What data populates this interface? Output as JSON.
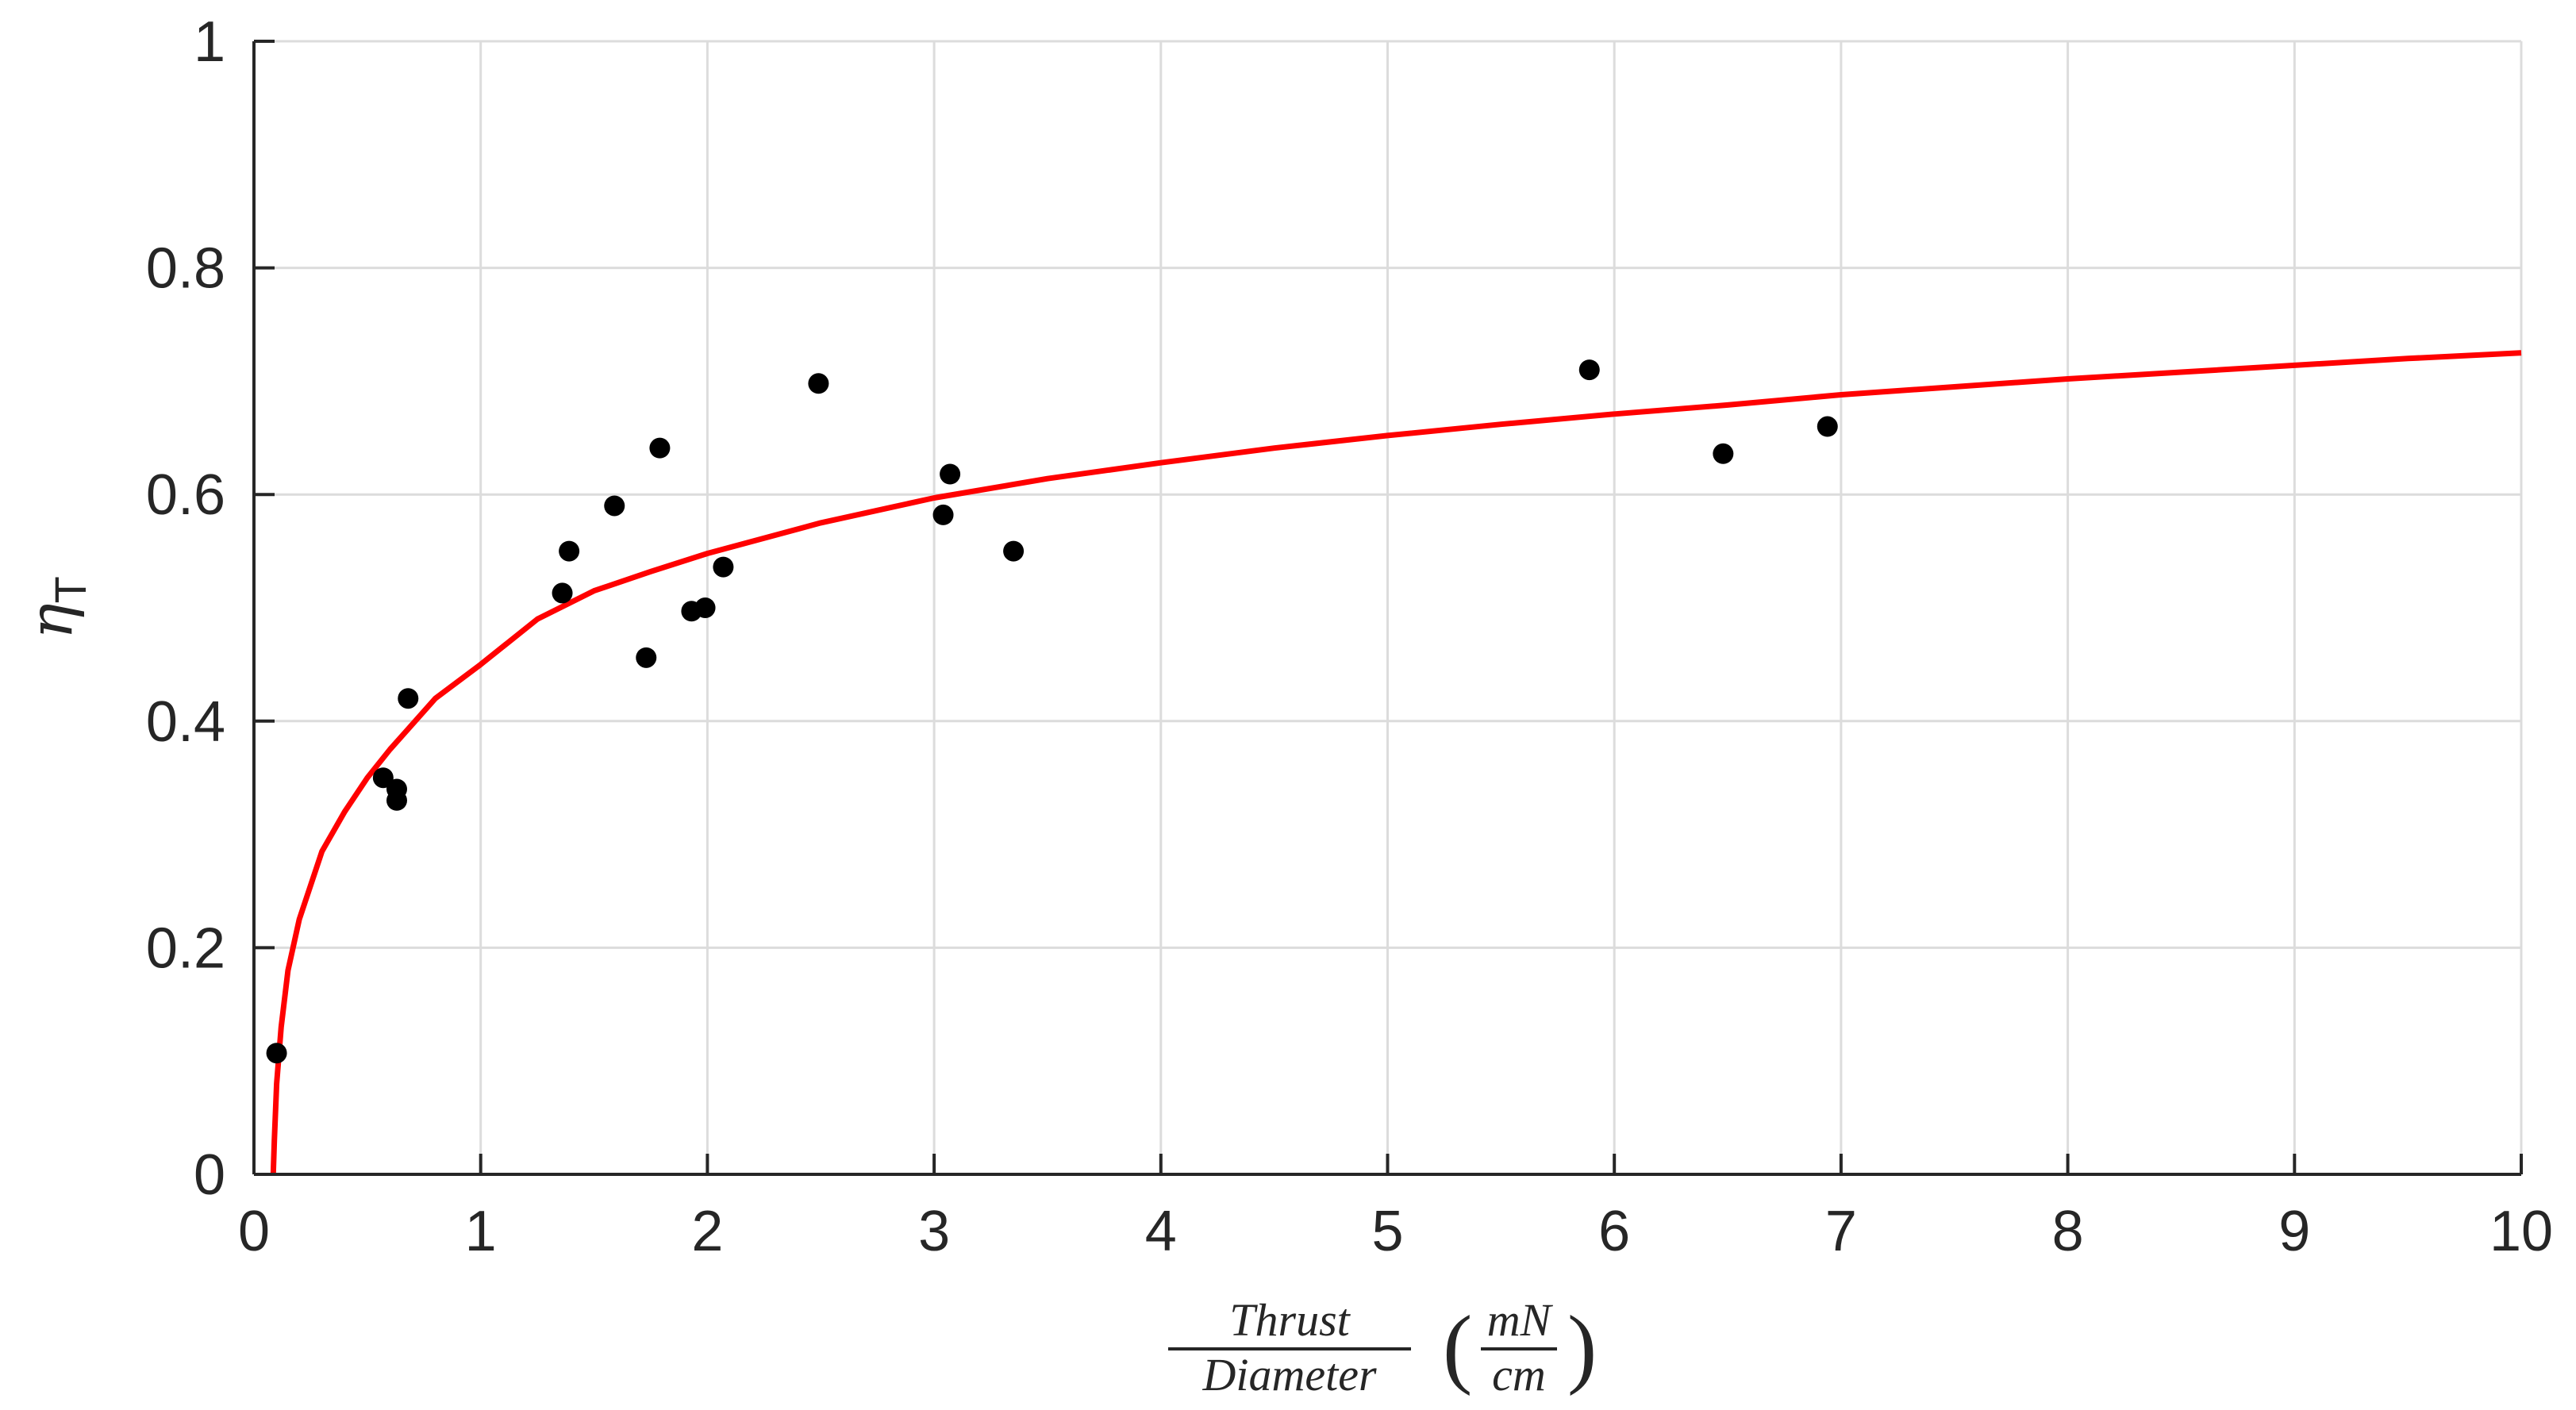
{
  "chart_data": {
    "type": "scatter",
    "xlabel": {
      "numerator": "Thrust",
      "denominator": "Diameter",
      "unit_numerator": "mN",
      "unit_denominator": "cm"
    },
    "ylabel": {
      "symbol": "η",
      "subscript": "T"
    },
    "xlim": [
      0,
      10
    ],
    "ylim": [
      0,
      1
    ],
    "xticks": [
      0,
      1,
      2,
      3,
      4,
      5,
      6,
      7,
      8,
      9,
      10
    ],
    "yticks": [
      0,
      0.2,
      0.4,
      0.6,
      0.8,
      1
    ],
    "ytick_labels": [
      "0",
      "0.2",
      "0.4",
      "0.6",
      "0.8",
      "1"
    ],
    "grid": true,
    "colors": {
      "points": "#000000",
      "fit": "#ff0000",
      "grid": "#dcdcdc",
      "axis": "#262626"
    },
    "series": [
      {
        "type": "scatter",
        "points": [
          [
            0.1,
            0.107
          ],
          [
            0.57,
            0.35
          ],
          [
            0.63,
            0.34
          ],
          [
            0.63,
            0.33
          ],
          [
            0.68,
            0.42
          ],
          [
            1.36,
            0.513
          ],
          [
            1.39,
            0.55
          ],
          [
            1.59,
            0.59
          ],
          [
            1.73,
            0.456
          ],
          [
            1.79,
            0.641
          ],
          [
            1.93,
            0.497
          ],
          [
            1.99,
            0.5
          ],
          [
            2.07,
            0.536
          ],
          [
            2.49,
            0.698
          ],
          [
            3.04,
            0.582
          ],
          [
            3.07,
            0.618
          ],
          [
            3.35,
            0.55
          ],
          [
            5.89,
            0.71
          ],
          [
            6.48,
            0.636
          ],
          [
            6.94,
            0.66
          ]
        ]
      },
      {
        "type": "line",
        "points": [
          [
            0.085,
            0.0
          ],
          [
            0.09,
            0.03
          ],
          [
            0.1,
            0.08
          ],
          [
            0.12,
            0.13
          ],
          [
            0.15,
            0.18
          ],
          [
            0.2,
            0.225
          ],
          [
            0.3,
            0.285
          ],
          [
            0.4,
            0.32
          ],
          [
            0.5,
            0.35
          ],
          [
            0.6,
            0.375
          ],
          [
            0.8,
            0.42
          ],
          [
            1.0,
            0.45
          ],
          [
            1.25,
            0.49
          ],
          [
            1.5,
            0.515
          ],
          [
            1.75,
            0.532
          ],
          [
            2.0,
            0.548
          ],
          [
            2.5,
            0.575
          ],
          [
            3.0,
            0.597
          ],
          [
            3.5,
            0.614
          ],
          [
            4.0,
            0.628
          ],
          [
            4.5,
            0.641
          ],
          [
            5.0,
            0.652
          ],
          [
            5.5,
            0.662
          ],
          [
            6.0,
            0.671
          ],
          [
            6.5,
            0.679
          ],
          [
            7.0,
            0.688
          ],
          [
            7.5,
            0.695
          ],
          [
            8.0,
            0.702
          ],
          [
            8.5,
            0.708
          ],
          [
            9.0,
            0.714
          ],
          [
            9.5,
            0.72
          ],
          [
            10.0,
            0.725
          ]
        ]
      }
    ]
  }
}
